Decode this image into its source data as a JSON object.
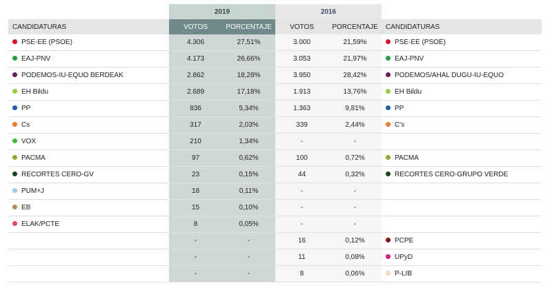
{
  "years": {
    "y2019": "2019",
    "y2016": "2016"
  },
  "headers": {
    "candidaturas_left": "CANDIDATURAS",
    "votos_2019": "VOTOS",
    "porcentaje_2019": "PORCENTAJE",
    "votos_2016": "VOTOS",
    "porcentaje_2016": "PORCENTAJE",
    "candidaturas_right": "CANDIDATURAS"
  },
  "rows": [
    {
      "p19": "PSE-EE (PSOE)",
      "c19": "#e0112a",
      "v19": "4.306",
      "pc19": "27,51%",
      "v16": "3.000",
      "pc16": "21,59%",
      "p16": "PSE-EE (PSOE)",
      "c16": "#e0112a"
    },
    {
      "p19": "EAJ-PNV",
      "c19": "#1f9f3a",
      "v19": "4.173",
      "pc19": "26,66%",
      "v16": "3.053",
      "pc16": "21,97%",
      "p16": "EAJ-PNV",
      "c16": "#1f9f3a"
    },
    {
      "p19": "PODEMOS-IU-EQUO BERDEAK",
      "c19": "#6a1b5e",
      "v19": "2.862",
      "pc19": "18,28%",
      "v16": "3.950",
      "pc16": "28,42%",
      "p16": "PODEMOS/AHAL DUGU-IU-EQUO",
      "c16": "#6a1b5e"
    },
    {
      "p19": "EH Bildu",
      "c19": "#9acd32",
      "v19": "2.689",
      "pc19": "17,18%",
      "v16": "1.913",
      "pc16": "13,76%",
      "p16": "EH Bildu",
      "c16": "#9acd32"
    },
    {
      "p19": "PP",
      "c19": "#1d5fa8",
      "v19": "836",
      "pc19": "5,34%",
      "v16": "1.363",
      "pc16": "9,81%",
      "p16": "PP",
      "c16": "#1d5fa8"
    },
    {
      "p19": "Cs",
      "c19": "#f27a2b",
      "v19": "317",
      "pc19": "2,03%",
      "v16": "339",
      "pc16": "2,44%",
      "p16": "C's",
      "c16": "#f27a2b"
    },
    {
      "p19": "VOX",
      "c19": "#3fbf3a",
      "v19": "210",
      "pc19": "1,34%",
      "v16": "-",
      "pc16": "-",
      "p16": "",
      "c16": ""
    },
    {
      "p19": "PACMA",
      "c19": "#9aa52b",
      "v19": "97",
      "pc19": "0,62%",
      "v16": "100",
      "pc16": "0,72%",
      "p16": "PACMA",
      "c16": "#9aa52b"
    },
    {
      "p19": "RECORTES CERO-GV",
      "c19": "#0f4d1f",
      "v19": "23",
      "pc19": "0,15%",
      "v16": "44",
      "pc16": "0,32%",
      "p16": "RECORTES CERO-GRUPO VERDE",
      "c16": "#0f4d1f"
    },
    {
      "p19": "PUM+J",
      "c19": "#8ecfe6",
      "v19": "18",
      "pc19": "0,11%",
      "v16": "-",
      "pc16": "-",
      "p16": "",
      "c16": ""
    },
    {
      "p19": "EB",
      "c19": "#b98a56",
      "v19": "15",
      "pc19": "0,10%",
      "v16": "-",
      "pc16": "-",
      "p16": "",
      "c16": ""
    },
    {
      "p19": "ELAK/PCTE",
      "c19": "#e64b62",
      "v19": "8",
      "pc19": "0,05%",
      "v16": "-",
      "pc16": "-",
      "p16": "",
      "c16": ""
    },
    {
      "p19": "",
      "c19": "",
      "v19": "-",
      "pc19": "-",
      "v16": "16",
      "pc16": "0,12%",
      "p16": "PCPE",
      "c16": "#8b0f0f"
    },
    {
      "p19": "",
      "c19": "",
      "v19": "-",
      "pc19": "-",
      "v16": "11",
      "pc16": "0,08%",
      "p16": "UPyD",
      "c16": "#e0158a"
    },
    {
      "p19": "",
      "c19": "",
      "v19": "-",
      "pc19": "-",
      "v16": "8",
      "pc16": "0,06%",
      "p16": "P-LIB",
      "c16": "#f3d9b5"
    }
  ]
}
